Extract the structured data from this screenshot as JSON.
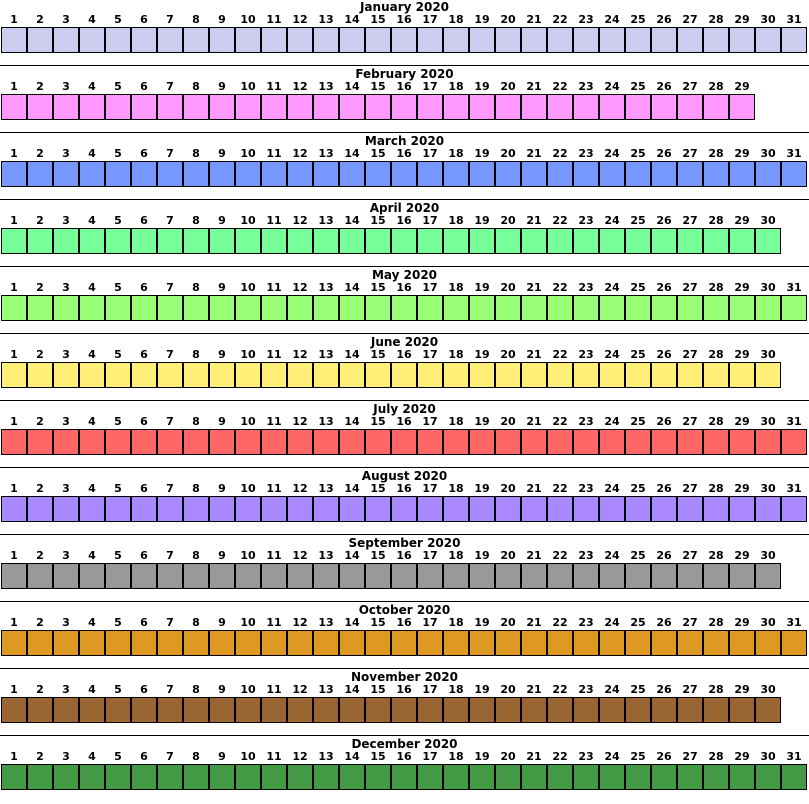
{
  "months": [
    {
      "title": "January 2020",
      "days": 31,
      "color": "#ccccee"
    },
    {
      "title": "February 2020",
      "days": 29,
      "color": "#ff99ff"
    },
    {
      "title": "March 2020",
      "days": 31,
      "color": "#7799ff"
    },
    {
      "title": "April 2020",
      "days": 30,
      "color": "#77ff99"
    },
    {
      "title": "May 2020",
      "days": 31,
      "color": "#99ff77"
    },
    {
      "title": "June 2020",
      "days": 30,
      "color": "#ffee77"
    },
    {
      "title": "July 2020",
      "days": 31,
      "color": "#ff6666"
    },
    {
      "title": "August 2020",
      "days": 31,
      "color": "#aa88ff"
    },
    {
      "title": "September 2020",
      "days": 30,
      "color": "#999999"
    },
    {
      "title": "October 2020",
      "days": 31,
      "color": "#dd9922"
    },
    {
      "title": "November 2020",
      "days": 30,
      "color": "#996633"
    },
    {
      "title": "December 2020",
      "days": 31,
      "color": "#449944"
    }
  ]
}
